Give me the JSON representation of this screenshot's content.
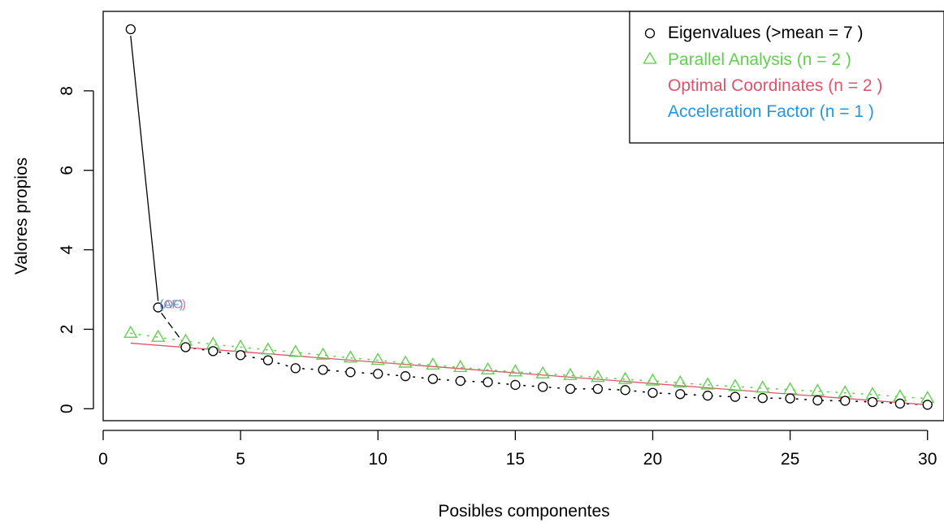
{
  "chart_data": {
    "type": "scatter",
    "title": "",
    "xlabel": "Posibles componentes",
    "ylabel": "Valores propios",
    "xlim": [
      0,
      30.6
    ],
    "ylim": [
      -0.3,
      10.0
    ],
    "xticks": [
      0,
      5,
      10,
      15,
      20,
      25,
      30
    ],
    "yticks": [
      0,
      2,
      4,
      6,
      8
    ],
    "grid": false,
    "legend_position": "top-right",
    "x": [
      1,
      2,
      3,
      4,
      5,
      6,
      7,
      8,
      9,
      10,
      11,
      12,
      13,
      14,
      15,
      16,
      17,
      18,
      19,
      20,
      21,
      22,
      23,
      24,
      25,
      26,
      27,
      28,
      29,
      30
    ],
    "series": [
      {
        "name": "Eigenvalues (>mean  =  7 )",
        "marker": "circle",
        "color": "#000000",
        "values": [
          9.55,
          2.55,
          1.55,
          1.45,
          1.35,
          1.22,
          1.02,
          0.98,
          0.92,
          0.88,
          0.82,
          0.75,
          0.7,
          0.67,
          0.6,
          0.55,
          0.5,
          0.5,
          0.47,
          0.4,
          0.37,
          0.33,
          0.3,
          0.27,
          0.26,
          0.21,
          0.2,
          0.17,
          0.13,
          0.1
        ]
      },
      {
        "name": "Parallel Analysis (n =  2 )",
        "marker": "triangle",
        "color": "#61D04F",
        "values": [
          1.9,
          1.8,
          1.7,
          1.62,
          1.55,
          1.48,
          1.42,
          1.35,
          1.28,
          1.22,
          1.15,
          1.1,
          1.04,
          0.98,
          0.93,
          0.88,
          0.84,
          0.79,
          0.74,
          0.7,
          0.65,
          0.6,
          0.56,
          0.52,
          0.48,
          0.44,
          0.4,
          0.36,
          0.3,
          0.26
        ]
      },
      {
        "name": "Optimal Coordinates (n =  2 )",
        "marker": "line",
        "color": "#DF536B",
        "line": {
          "x": [
            1,
            30
          ],
          "y": [
            1.65,
            0.1
          ]
        }
      },
      {
        "name": "Acceleration Factor (n =  1 )",
        "marker": "none",
        "color": "#2297E6"
      }
    ],
    "annotations": [
      {
        "text": "(OC)",
        "x": 2.05,
        "y": 2.65,
        "color": "#DF536B"
      },
      {
        "text": "(AF)",
        "x": 2.05,
        "y": 2.65,
        "color": "#2297E6"
      }
    ]
  }
}
